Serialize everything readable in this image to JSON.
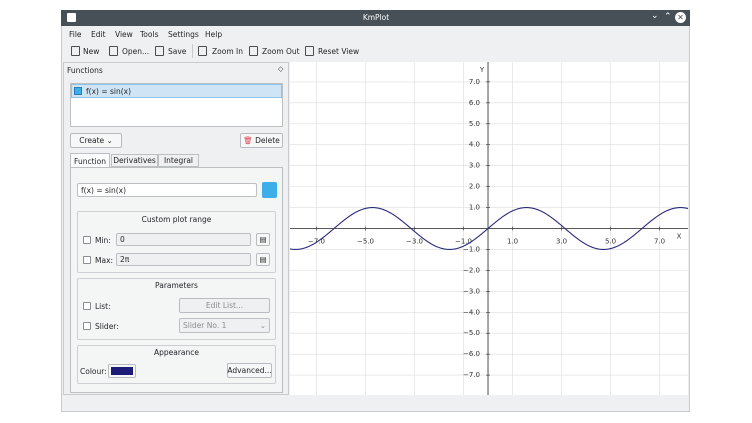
{
  "window": {
    "title": "KmPlot"
  },
  "menu": [
    "File",
    "Edit",
    "View",
    "Tools",
    "Settings",
    "Help"
  ],
  "toolbar": [
    "New",
    "Open...",
    "Save",
    "Zoom In",
    "Zoom Out",
    "Reset View"
  ],
  "panel": {
    "title": "Functions",
    "functions": [
      "f(x) = sin(x)"
    ],
    "create": "Create",
    "delete": "Delete",
    "tabs": [
      "Function",
      "Derivatives",
      "Integral"
    ],
    "equation": "f(x) = sin(x)",
    "plot_range": {
      "title": "Custom plot range",
      "min_label": "Min:",
      "min": "0",
      "max_label": "Max:",
      "max": "2π"
    },
    "parameters": {
      "title": "Parameters",
      "list_label": "List:",
      "list_button": "Edit List...",
      "slider_label": "Slider:",
      "slider": "Slider No. 1"
    },
    "appearance": {
      "title": "Appearance",
      "colour_label": "Colour:",
      "colour": "#1c1c78",
      "advanced": "Advanced..."
    }
  },
  "chart_data": {
    "type": "function",
    "function": "sin",
    "xlabel": "X",
    "ylabel": "Y",
    "color": "#2b2b7c",
    "xlim": [
      -8.08,
      8.16
    ],
    "ylim": [
      -7.95,
      7.95
    ],
    "xticks": [
      {
        "value": -7,
        "label": "−7.0"
      },
      {
        "value": -5,
        "label": "−5.0"
      },
      {
        "value": -3,
        "label": "−3.0"
      },
      {
        "value": -1,
        "label": "−1.0"
      },
      {
        "value": 1,
        "label": "1.0"
      },
      {
        "value": 3,
        "label": "3.0"
      },
      {
        "value": 5,
        "label": "5.0"
      },
      {
        "value": 7,
        "label": "7.0"
      }
    ],
    "yticks": [
      {
        "value": 7,
        "label": "7.0"
      },
      {
        "value": 6,
        "label": "6.0"
      },
      {
        "value": 5,
        "label": "5.0"
      },
      {
        "value": 4,
        "label": "4.0"
      },
      {
        "value": 3,
        "label": "3.0"
      },
      {
        "value": 2,
        "label": "2.0"
      },
      {
        "value": 1,
        "label": "1.0"
      },
      {
        "value": -1,
        "label": "−1.0"
      },
      {
        "value": -2,
        "label": "−2.0"
      },
      {
        "value": -3,
        "label": "−3.0"
      },
      {
        "value": -4,
        "label": "−4.0"
      },
      {
        "value": -5,
        "label": "−5.0"
      },
      {
        "value": -6,
        "label": "−6.0"
      },
      {
        "value": -7,
        "label": "−7.0"
      }
    ]
  }
}
